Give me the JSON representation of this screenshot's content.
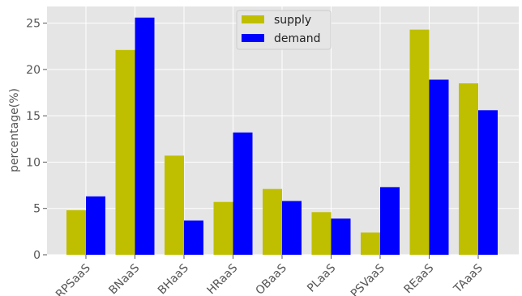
{
  "chart_data": {
    "type": "bar",
    "title": "",
    "xlabel": "",
    "ylabel": "percentage(%)",
    "ylim": [
      0,
      26.8
    ],
    "yticks": [
      0,
      5,
      10,
      15,
      20,
      25
    ],
    "categories": [
      "RPSaaS",
      "BNaaS",
      "BHaaS",
      "HRaaS",
      "OBaaS",
      "PLaaS",
      "PSVaaS",
      "REaaS",
      "TAaaS"
    ],
    "series": [
      {
        "name": "supply",
        "color": "#bfbf00",
        "values": [
          4.8,
          22.1,
          10.7,
          5.7,
          7.1,
          4.6,
          2.4,
          24.3,
          18.5
        ]
      },
      {
        "name": "demand",
        "color": "#0000ff",
        "values": [
          6.3,
          25.6,
          3.7,
          13.2,
          5.8,
          3.9,
          7.3,
          18.9,
          15.6
        ]
      }
    ],
    "grid": true,
    "legend_position": "top-center",
    "background": "#e5e5e5"
  }
}
